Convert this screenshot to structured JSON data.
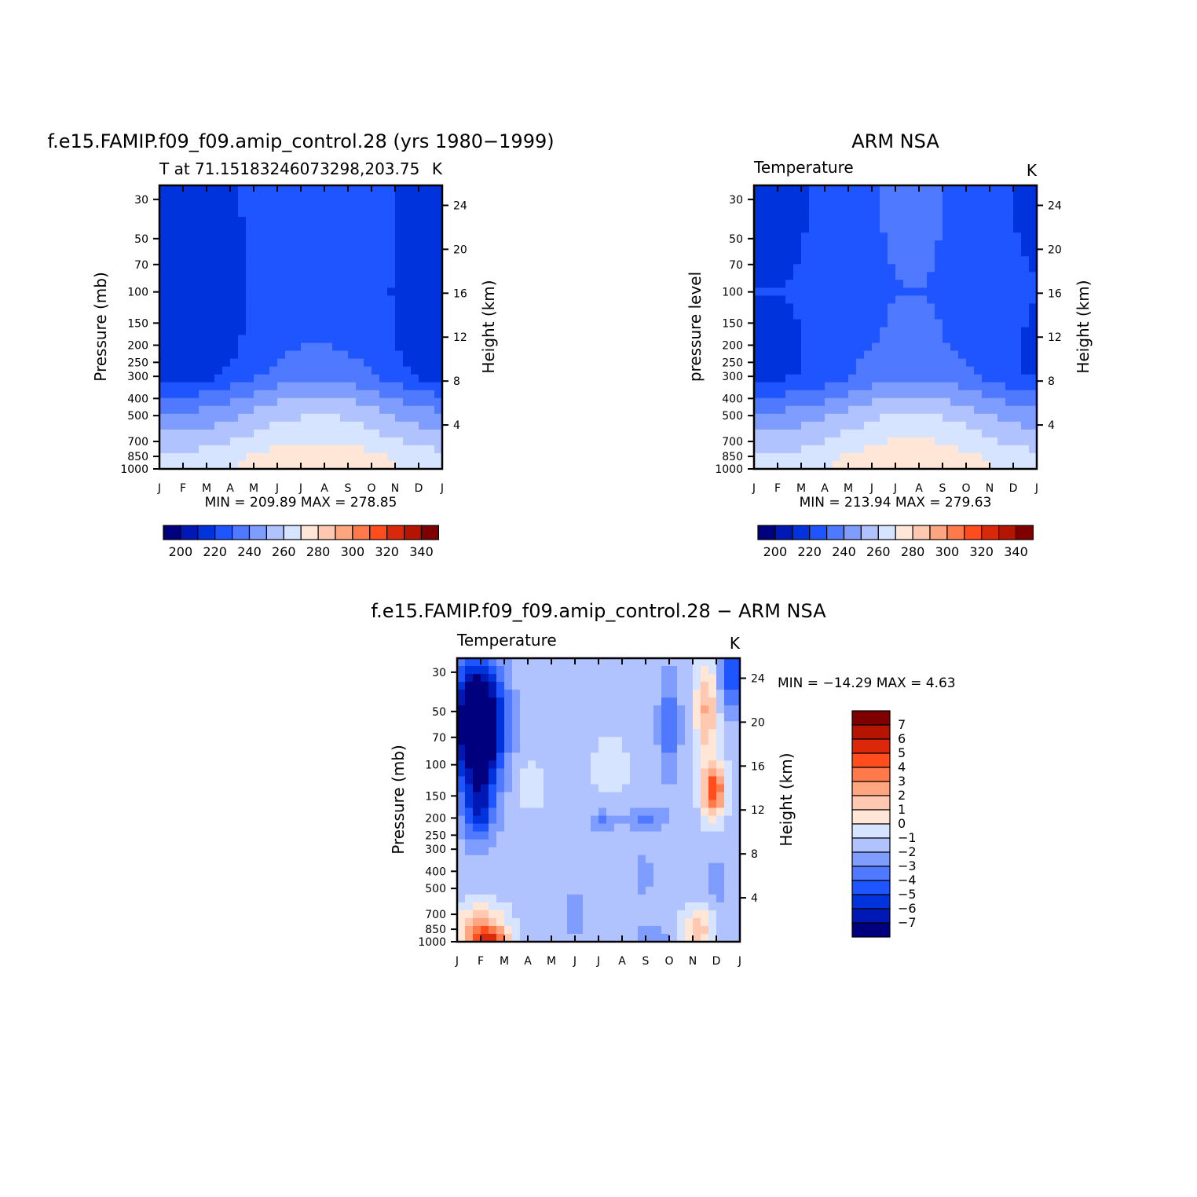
{
  "colors": {
    "temp_palette": [
      "#00007f",
      "#0019b4",
      "#0033dc",
      "#1e55ff",
      "#4f79ff",
      "#7f9cff",
      "#b0c3ff",
      "#d6e4ff",
      "#ffe6d6",
      "#ffc8b0",
      "#ffa680",
      "#ff7a4a",
      "#ff4d1e",
      "#dc280a",
      "#b41400",
      "#7f0000"
    ],
    "diff_palette": [
      "#00007f",
      "#0019b4",
      "#0033dc",
      "#1e55ff",
      "#4f79ff",
      "#7f9cff",
      "#b0c3ff",
      "#d6e4ff",
      "#ffe6d6",
      "#ffc8b0",
      "#ffa680",
      "#ff7a4a",
      "#ff4d1e",
      "#dc280a",
      "#b41400",
      "#7f0000"
    ]
  },
  "chart_data": [
    {
      "type": "heatmap",
      "title": "f.e15.FAMIP.f09_f09.amip_control.28 (yrs 1980−1999)",
      "subtitle_left": "T  at  71.15183246073298,203.75",
      "subtitle_right": "K",
      "ylabel": "Pressure  (mb)",
      "ylabel_right": "Height  (km)",
      "x_ticks": [
        "J",
        "F",
        "M",
        "A",
        "M",
        "J",
        "J",
        "A",
        "S",
        "O",
        "N",
        "D",
        "J"
      ],
      "y_ticks": [
        30,
        50,
        70,
        100,
        150,
        200,
        250,
        300,
        400,
        500,
        700,
        850,
        1000
      ],
      "y_right_ticks": [
        24,
        20,
        16,
        12,
        8,
        4
      ],
      "ylim": [
        1000,
        25
      ],
      "y_scale": "log",
      "stats": "MIN  =  209.89  MAX  =  278.85",
      "levels": [
        200,
        210,
        220,
        230,
        240,
        250,
        260,
        270,
        280,
        290,
        300,
        310,
        320,
        330,
        340
      ],
      "colorbar_labels": [
        "200",
        "220",
        "240",
        "260",
        "280",
        "300",
        "320",
        "340"
      ],
      "colorbar_orientation": "horizontal",
      "profile_jan": [
        [
          30,
          212
        ],
        [
          100,
          213
        ],
        [
          200,
          212
        ],
        [
          300,
          215
        ],
        [
          400,
          232
        ],
        [
          500,
          242
        ],
        [
          700,
          255
        ],
        [
          850,
          263
        ],
        [
          1000,
          266
        ]
      ],
      "profile_jul": [
        [
          30,
          230
        ],
        [
          100,
          228
        ],
        [
          200,
          230
        ],
        [
          300,
          238
        ],
        [
          400,
          252
        ],
        [
          500,
          260
        ],
        [
          700,
          270
        ],
        [
          850,
          276
        ],
        [
          1000,
          279
        ]
      ]
    },
    {
      "type": "heatmap",
      "title": "ARM  NSA",
      "subtitle_left": "Temperature",
      "subtitle_right": "K",
      "ylabel": "pressure  level",
      "ylabel_right": "Height  (km)",
      "x_ticks": [
        "J",
        "F",
        "M",
        "A",
        "M",
        "J",
        "J",
        "A",
        "S",
        "O",
        "N",
        "D",
        "J"
      ],
      "y_ticks": [
        30,
        50,
        70,
        100,
        150,
        200,
        250,
        300,
        400,
        500,
        700,
        850,
        1000
      ],
      "y_right_ticks": [
        24,
        20,
        16,
        12,
        8,
        4
      ],
      "ylim": [
        1000,
        25
      ],
      "y_scale": "log",
      "stats": "MIN  =  213.94  MAX  =  279.63",
      "levels": [
        200,
        210,
        220,
        230,
        240,
        250,
        260,
        270,
        280,
        290,
        300,
        310,
        320,
        330,
        340
      ],
      "colorbar_labels": [
        "200",
        "220",
        "240",
        "260",
        "280",
        "300",
        "320",
        "340"
      ],
      "colorbar_orientation": "horizontal",
      "profile_jan": [
        [
          30,
          217
        ],
        [
          100,
          220
        ],
        [
          200,
          218
        ],
        [
          300,
          218
        ],
        [
          400,
          232
        ],
        [
          500,
          243
        ],
        [
          700,
          255
        ],
        [
          850,
          262
        ],
        [
          1000,
          265
        ]
      ],
      "profile_jul": [
        [
          30,
          232
        ],
        [
          100,
          230
        ],
        [
          200,
          232
        ],
        [
          300,
          238
        ],
        [
          400,
          252
        ],
        [
          500,
          261
        ],
        [
          700,
          271
        ],
        [
          850,
          277
        ],
        [
          1000,
          280
        ]
      ]
    },
    {
      "type": "heatmap",
      "title": "f.e15.FAMIP.f09_f09.amip_control.28  −  ARM  NSA",
      "subtitle_left": "Temperature",
      "subtitle_right": "K",
      "ylabel": "Pressure  (mb)",
      "ylabel_right": "Height  (km)",
      "x_ticks": [
        "J",
        "F",
        "M",
        "A",
        "M",
        "J",
        "J",
        "A",
        "S",
        "O",
        "N",
        "D",
        "J"
      ],
      "y_ticks": [
        30,
        50,
        70,
        100,
        150,
        200,
        250,
        300,
        400,
        500,
        700,
        850,
        1000
      ],
      "y_right_ticks": [
        24,
        20,
        16,
        12,
        8,
        4
      ],
      "ylim": [
        1000,
        25
      ],
      "y_scale": "log",
      "stats": "MIN  =  −14.29  MAX  =     4.63",
      "levels": [
        -7,
        -6,
        -5,
        -4,
        -3,
        -2,
        -1,
        0,
        1,
        2,
        3,
        4,
        5,
        6,
        7
      ],
      "colorbar_labels": [
        "7",
        "6",
        "5",
        "4",
        "3",
        "2",
        "1",
        "0",
        "−1",
        "−2",
        "−3",
        "−4",
        "−5",
        "−6",
        "−7"
      ],
      "colorbar_orientation": "vertical",
      "features": [
        {
          "month": 0.9,
          "p": 60,
          "value": -12,
          "spread_m": 0.7,
          "spread_logp": 0.55
        },
        {
          "month": 0.9,
          "p": 180,
          "value": -5,
          "spread_m": 0.45,
          "spread_logp": 0.3
        },
        {
          "month": 9.0,
          "p": 60,
          "value": -4,
          "spread_m": 0.3,
          "spread_logp": 0.45
        },
        {
          "month": 10.9,
          "p": 140,
          "value": 4.5,
          "spread_m": 0.35,
          "spread_logp": 0.25
        },
        {
          "month": 10.6,
          "p": 50,
          "value": 2.2,
          "spread_m": 0.35,
          "spread_logp": 0.45
        },
        {
          "month": 11.7,
          "p": 30,
          "value": -5,
          "spread_m": 0.4,
          "spread_logp": 0.35
        },
        {
          "month": 1.3,
          "p": 990,
          "value": 3.8,
          "spread_m": 0.6,
          "spread_logp": 0.12
        },
        {
          "month": 1.0,
          "p": 800,
          "value": 1.8,
          "spread_m": 0.8,
          "spread_logp": 0.2
        },
        {
          "month": 10.2,
          "p": 850,
          "value": 1.6,
          "spread_m": 0.5,
          "spread_logp": 0.2
        },
        {
          "month": 6.2,
          "p": 210,
          "value": -3.2,
          "spread_m": 0.4,
          "spread_logp": 0.1
        },
        {
          "month": 8.0,
          "p": 200,
          "value": -3.2,
          "spread_m": 0.6,
          "spread_logp": 0.1
        },
        {
          "month": 5.0,
          "p": 700,
          "value": -3.2,
          "spread_m": 0.25,
          "spread_logp": 0.15
        },
        {
          "month": 7.9,
          "p": 420,
          "value": -3.0,
          "spread_m": 0.25,
          "spread_logp": 0.15
        },
        {
          "month": 11.0,
          "p": 450,
          "value": -3.0,
          "spread_m": 0.3,
          "spread_logp": 0.2
        },
        {
          "month": 8.3,
          "p": 960,
          "value": -3.0,
          "spread_m": 0.5,
          "spread_logp": 0.1
        },
        {
          "month": 3.1,
          "p": 130,
          "value": -0.5,
          "spread_m": 0.5,
          "spread_logp": 0.3
        },
        {
          "month": 6.5,
          "p": 100,
          "value": -0.5,
          "spread_m": 0.7,
          "spread_logp": 0.3
        }
      ],
      "background_value": -1.5
    }
  ]
}
